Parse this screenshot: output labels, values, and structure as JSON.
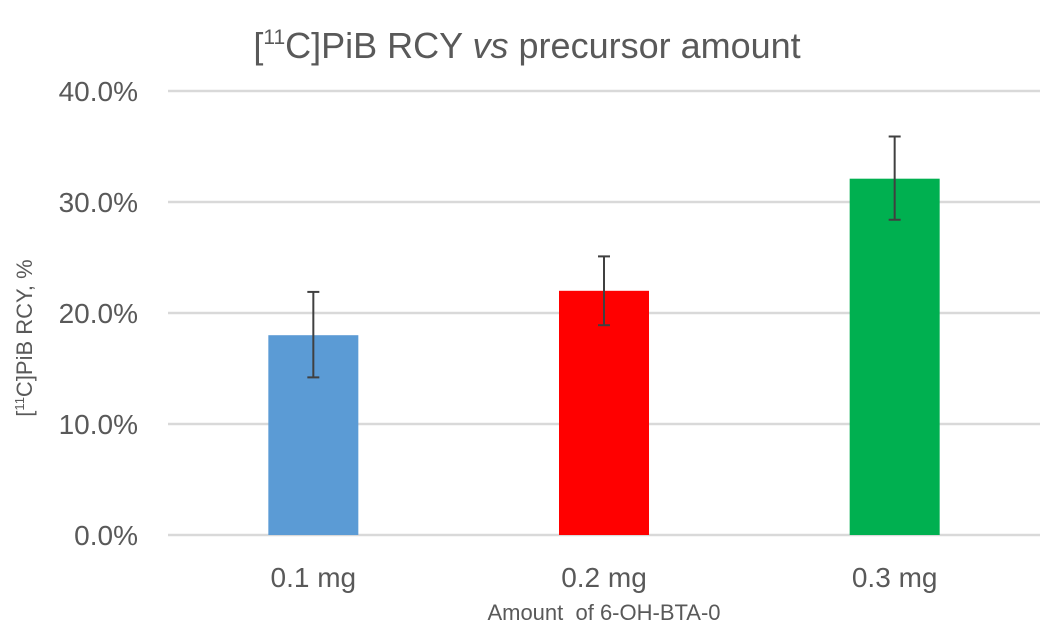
{
  "chart_data": {
    "type": "bar",
    "title": {
      "prefix": "[",
      "superscript": "11",
      "main": "C]PiB RCY ",
      "italic": "vs",
      "suffix": " precursor amount"
    },
    "ylabel": {
      "prefix": "[",
      "superscript": "11",
      "main": "C]PiB RCY, %"
    },
    "xlabel": "Amount  of 6-OH-BTA-0",
    "categories": [
      "0.1 mg",
      "0.2 mg",
      "0.3 mg"
    ],
    "values": [
      18.0,
      22.0,
      32.1
    ],
    "error_upper": [
      21.9,
      25.1,
      35.9
    ],
    "error_lower": [
      14.2,
      18.9,
      28.4
    ],
    "colors": [
      "#5B9BD5",
      "#FF0000",
      "#00B050"
    ],
    "ylim": [
      0,
      40
    ],
    "yticks": [
      0,
      10,
      20,
      30,
      40
    ],
    "ytick_labels": [
      "0.0%",
      "10.0%",
      "20.0%",
      "30.0%",
      "40.0%"
    ],
    "grid": true,
    "legend": "none"
  }
}
